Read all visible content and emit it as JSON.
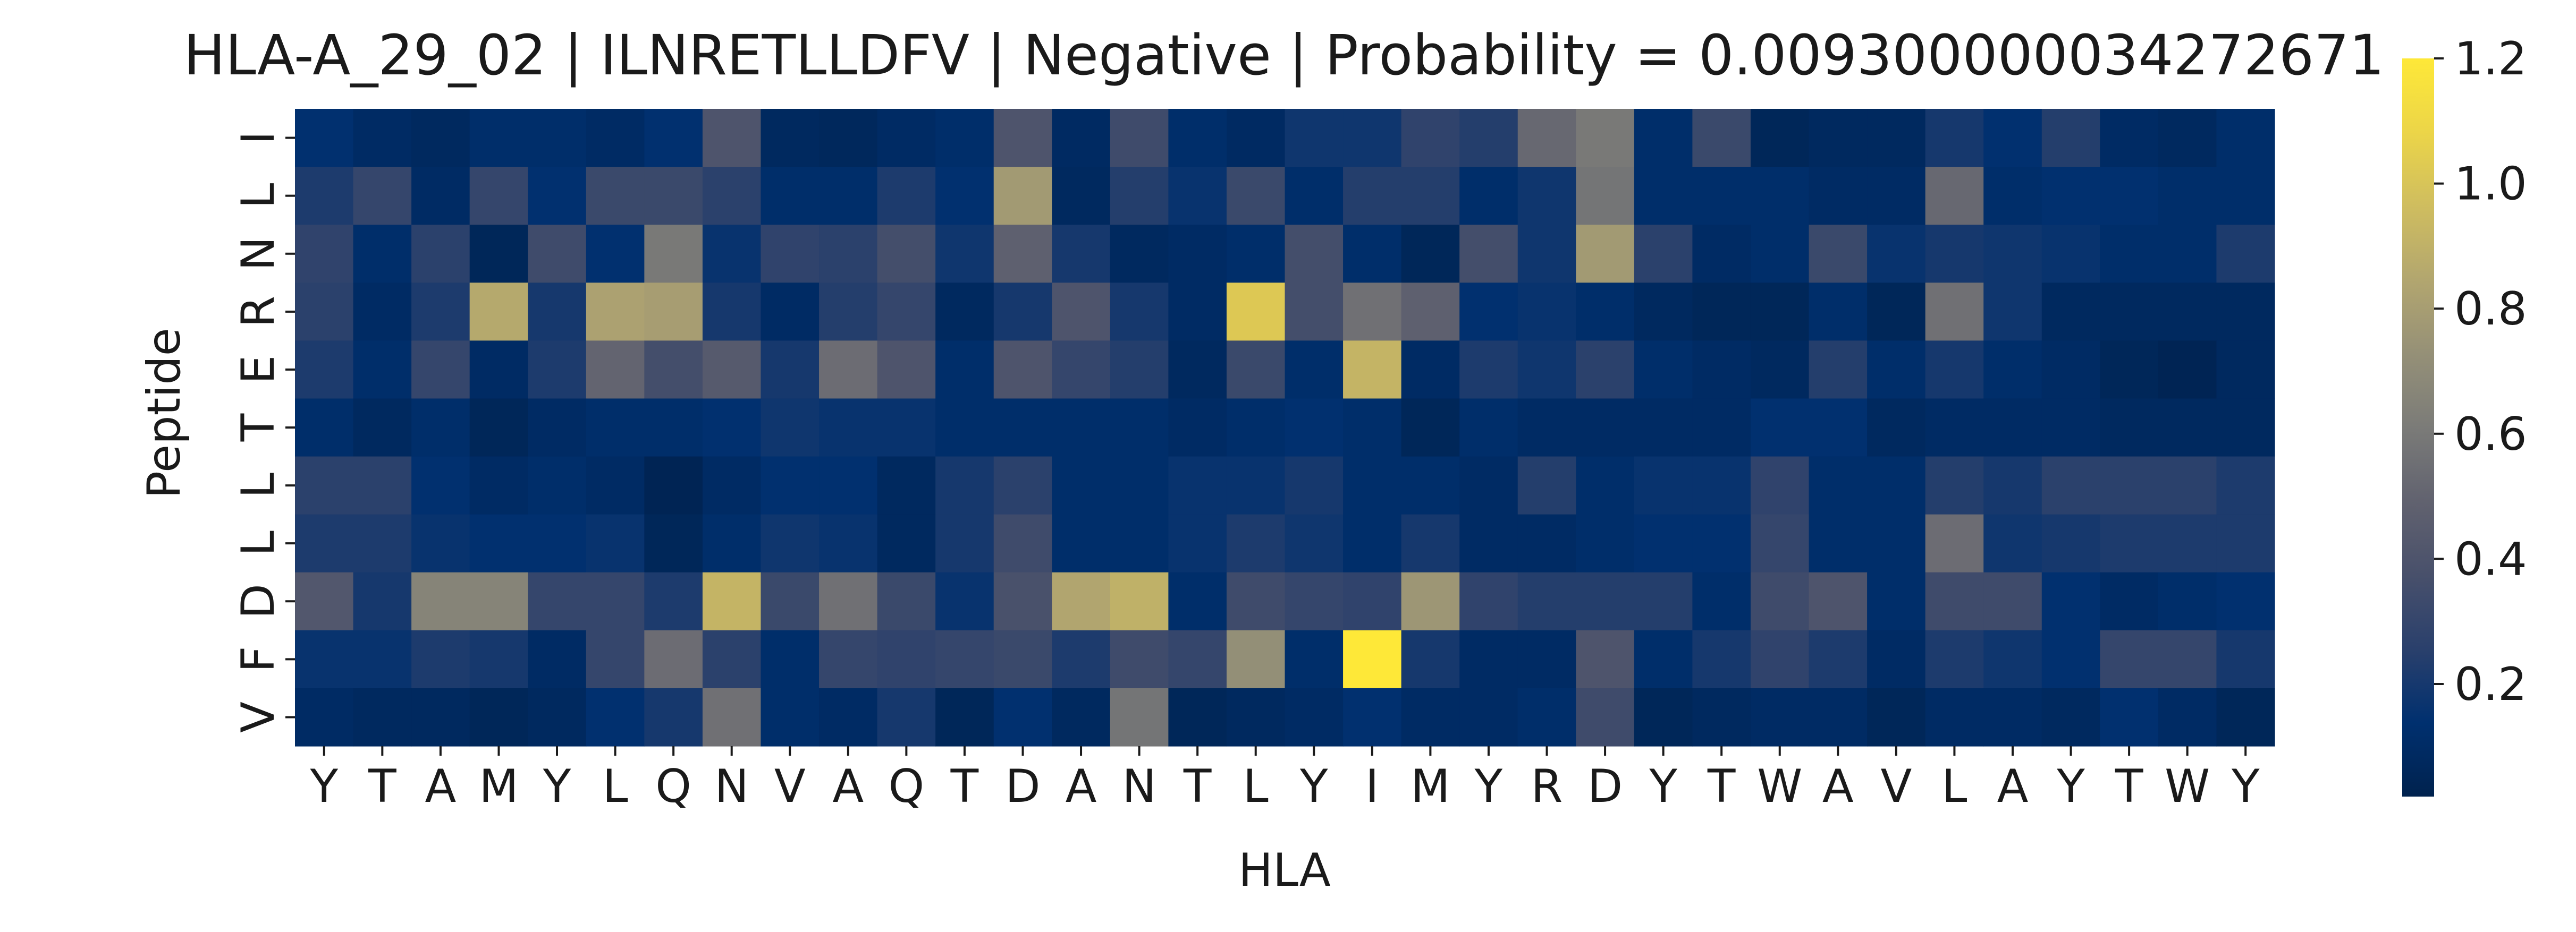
{
  "chart_data": {
    "type": "heatmap",
    "title": "HLA-A_29_02 | ILNRETLLDFV | Negative | Probability = 0.009300000034272671",
    "xlabel": "HLA",
    "ylabel": "Peptide",
    "x_tick_labels": [
      "Y",
      "T",
      "A",
      "M",
      "Y",
      "L",
      "Q",
      "N",
      "V",
      "A",
      "Q",
      "T",
      "D",
      "A",
      "N",
      "T",
      "L",
      "Y",
      "I",
      "M",
      "Y",
      "R",
      "D",
      "Y",
      "T",
      "W",
      "A",
      "V",
      "L",
      "A",
      "Y",
      "T",
      "W",
      "Y"
    ],
    "y_tick_labels": [
      "I",
      "L",
      "N",
      "R",
      "E",
      "T",
      "L",
      "L",
      "D",
      "F",
      "V"
    ],
    "colormap": "cividis",
    "colorbar": {
      "ticks": [
        0.2,
        0.4,
        0.6,
        0.8,
        1.0,
        1.2
      ],
      "tick_labels": [
        "0.2",
        "0.4",
        "0.6",
        "0.8",
        "1.0",
        "1.2"
      ],
      "range": [
        0.02,
        1.2
      ]
    },
    "values": [
      [
        0.14,
        0.1,
        0.08,
        0.12,
        0.12,
        0.1,
        0.14,
        0.4,
        0.08,
        0.07,
        0.1,
        0.12,
        0.4,
        0.09,
        0.34,
        0.12,
        0.09,
        0.18,
        0.18,
        0.28,
        0.24,
        0.52,
        0.6,
        0.12,
        0.32,
        0.06,
        0.08,
        0.08,
        0.2,
        0.14,
        0.24,
        0.1,
        0.08,
        0.12
      ],
      [
        0.22,
        0.3,
        0.1,
        0.3,
        0.14,
        0.32,
        0.32,
        0.26,
        0.12,
        0.12,
        0.22,
        0.14,
        0.78,
        0.08,
        0.24,
        0.16,
        0.32,
        0.12,
        0.24,
        0.24,
        0.12,
        0.18,
        0.58,
        0.12,
        0.12,
        0.12,
        0.1,
        0.1,
        0.52,
        0.12,
        0.14,
        0.14,
        0.12,
        0.12
      ],
      [
        0.28,
        0.12,
        0.26,
        0.06,
        0.34,
        0.14,
        0.6,
        0.16,
        0.28,
        0.26,
        0.36,
        0.18,
        0.48,
        0.2,
        0.08,
        0.1,
        0.12,
        0.36,
        0.12,
        0.06,
        0.36,
        0.18,
        0.78,
        0.26,
        0.1,
        0.12,
        0.32,
        0.16,
        0.2,
        0.18,
        0.16,
        0.12,
        0.12,
        0.22
      ],
      [
        0.26,
        0.1,
        0.22,
        0.86,
        0.2,
        0.82,
        0.8,
        0.2,
        0.1,
        0.24,
        0.3,
        0.08,
        0.2,
        0.4,
        0.2,
        0.1,
        1.02,
        0.36,
        0.56,
        0.48,
        0.14,
        0.16,
        0.12,
        0.08,
        0.06,
        0.06,
        0.12,
        0.06,
        0.56,
        0.18,
        0.08,
        0.08,
        0.08,
        0.08
      ],
      [
        0.22,
        0.12,
        0.3,
        0.1,
        0.22,
        0.5,
        0.36,
        0.44,
        0.2,
        0.54,
        0.4,
        0.12,
        0.4,
        0.3,
        0.24,
        0.08,
        0.32,
        0.12,
        0.92,
        0.1,
        0.22,
        0.18,
        0.26,
        0.12,
        0.1,
        0.08,
        0.24,
        0.12,
        0.2,
        0.12,
        0.1,
        0.06,
        0.04,
        0.08
      ],
      [
        0.12,
        0.08,
        0.12,
        0.06,
        0.1,
        0.12,
        0.12,
        0.14,
        0.18,
        0.16,
        0.16,
        0.12,
        0.12,
        0.12,
        0.12,
        0.1,
        0.12,
        0.14,
        0.12,
        0.06,
        0.12,
        0.1,
        0.1,
        0.1,
        0.1,
        0.14,
        0.14,
        0.08,
        0.1,
        0.1,
        0.1,
        0.08,
        0.08,
        0.08
      ],
      [
        0.26,
        0.26,
        0.14,
        0.1,
        0.12,
        0.1,
        0.04,
        0.1,
        0.14,
        0.14,
        0.08,
        0.2,
        0.26,
        0.12,
        0.12,
        0.16,
        0.16,
        0.2,
        0.12,
        0.12,
        0.1,
        0.24,
        0.12,
        0.16,
        0.16,
        0.28,
        0.12,
        0.12,
        0.24,
        0.2,
        0.26,
        0.26,
        0.26,
        0.22
      ],
      [
        0.22,
        0.22,
        0.16,
        0.14,
        0.14,
        0.16,
        0.06,
        0.12,
        0.18,
        0.16,
        0.08,
        0.2,
        0.34,
        0.12,
        0.12,
        0.16,
        0.22,
        0.18,
        0.12,
        0.2,
        0.1,
        0.1,
        0.12,
        0.14,
        0.14,
        0.3,
        0.12,
        0.12,
        0.54,
        0.18,
        0.2,
        0.22,
        0.22,
        0.22
      ],
      [
        0.42,
        0.2,
        0.66,
        0.66,
        0.3,
        0.3,
        0.22,
        0.92,
        0.32,
        0.56,
        0.32,
        0.16,
        0.38,
        0.84,
        0.9,
        0.12,
        0.34,
        0.3,
        0.28,
        0.76,
        0.28,
        0.24,
        0.24,
        0.24,
        0.12,
        0.34,
        0.4,
        0.12,
        0.34,
        0.34,
        0.14,
        0.1,
        0.12,
        0.14
      ],
      [
        0.16,
        0.16,
        0.22,
        0.2,
        0.1,
        0.3,
        0.54,
        0.26,
        0.12,
        0.3,
        0.28,
        0.3,
        0.32,
        0.22,
        0.34,
        0.3,
        0.72,
        0.12,
        1.2,
        0.2,
        0.1,
        0.1,
        0.4,
        0.12,
        0.2,
        0.28,
        0.22,
        0.1,
        0.22,
        0.18,
        0.14,
        0.3,
        0.3,
        0.2
      ],
      [
        0.1,
        0.08,
        0.08,
        0.06,
        0.08,
        0.14,
        0.2,
        0.56,
        0.12,
        0.1,
        0.2,
        0.06,
        0.14,
        0.08,
        0.58,
        0.06,
        0.08,
        0.1,
        0.14,
        0.1,
        0.1,
        0.12,
        0.34,
        0.06,
        0.08,
        0.1,
        0.1,
        0.06,
        0.1,
        0.1,
        0.08,
        0.14,
        0.1,
        0.06
      ]
    ]
  }
}
